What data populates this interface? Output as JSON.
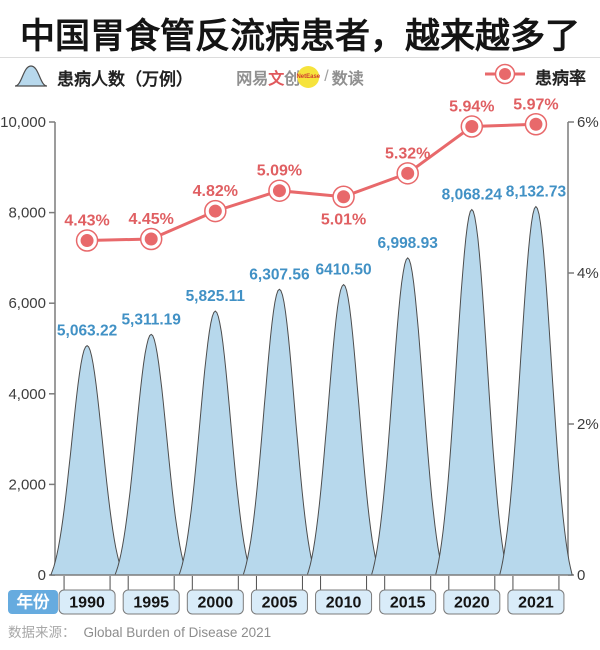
{
  "header": {
    "title": "中国胃食管反流病患者，越来越多了"
  },
  "legend": {
    "patients_label": "患病人数（万例）",
    "patients_icon": "bell-curve-icon",
    "rate_label": "患病率",
    "rate_icon": "line-dot-icon",
    "logo": {
      "brand_prefix": "网易",
      "brand_accent": "文",
      "brand_suffix": "创",
      "badge_text": "NetEase",
      "separator": "/",
      "channel": "数读"
    }
  },
  "chart_data": {
    "type": "combo",
    "categories": [
      "1990",
      "1995",
      "2000",
      "2005",
      "2010",
      "2015",
      "2020",
      "2021"
    ],
    "x_axis_label": "年份",
    "series": [
      {
        "name": "患病人数（万例）",
        "type": "area-bell",
        "axis": "left",
        "values": [
          5063.22,
          5311.19,
          5825.11,
          6307.56,
          6410.5,
          6998.93,
          8068.24,
          8132.73
        ],
        "labels": [
          "5,063.22",
          "5,311.19",
          "5,825.11",
          "6,307.56",
          "6410.50",
          "6,998.93",
          "8,068.24",
          "8,132.73"
        ]
      },
      {
        "name": "患病率",
        "type": "line",
        "axis": "right",
        "values": [
          4.43,
          4.45,
          4.82,
          5.09,
          5.01,
          5.32,
          5.94,
          5.97
        ],
        "labels": [
          "4.43%",
          "4.45%",
          "4.82%",
          "5.09%",
          "5.01%",
          "5.32%",
          "5.94%",
          "5.97%"
        ],
        "label_positions": [
          "above",
          "above",
          "above",
          "above",
          "below",
          "above",
          "above",
          "above"
        ]
      }
    ],
    "left_axis": {
      "max": 10000,
      "ticks": [
        {
          "v": 10000,
          "label": "10,000"
        },
        {
          "v": 8000,
          "label": "8,000"
        },
        {
          "v": 6000,
          "label": "6,000"
        },
        {
          "v": 4000,
          "label": "4,000"
        },
        {
          "v": 2000,
          "label": "2,000"
        },
        {
          "v": 0,
          "label": "0"
        }
      ]
    },
    "right_axis": {
      "max": 6,
      "ticks": [
        {
          "v": 6,
          "label": "6%"
        },
        {
          "v": 4,
          "label": "4%"
        },
        {
          "v": 2,
          "label": "2%"
        },
        {
          "v": 0,
          "label": "0"
        }
      ]
    },
    "grid": "off",
    "legend_position": "top"
  },
  "footer": {
    "source_label": "数据来源：",
    "source_value": "Global Burden of Disease 2021"
  },
  "colors": {
    "bell_fill": "#b7d8ec",
    "bell_stroke": "#4d4d4d",
    "line_red": "#e8696b",
    "label_red": "#e05f62",
    "label_blue": "#4191c5",
    "axis_gray": "#7c7c7c",
    "year_box_fill": "#d9ecf9",
    "year_box_border": "#7b7b7b",
    "year_header_fill": "#66abdf",
    "title_black": "#141414"
  }
}
